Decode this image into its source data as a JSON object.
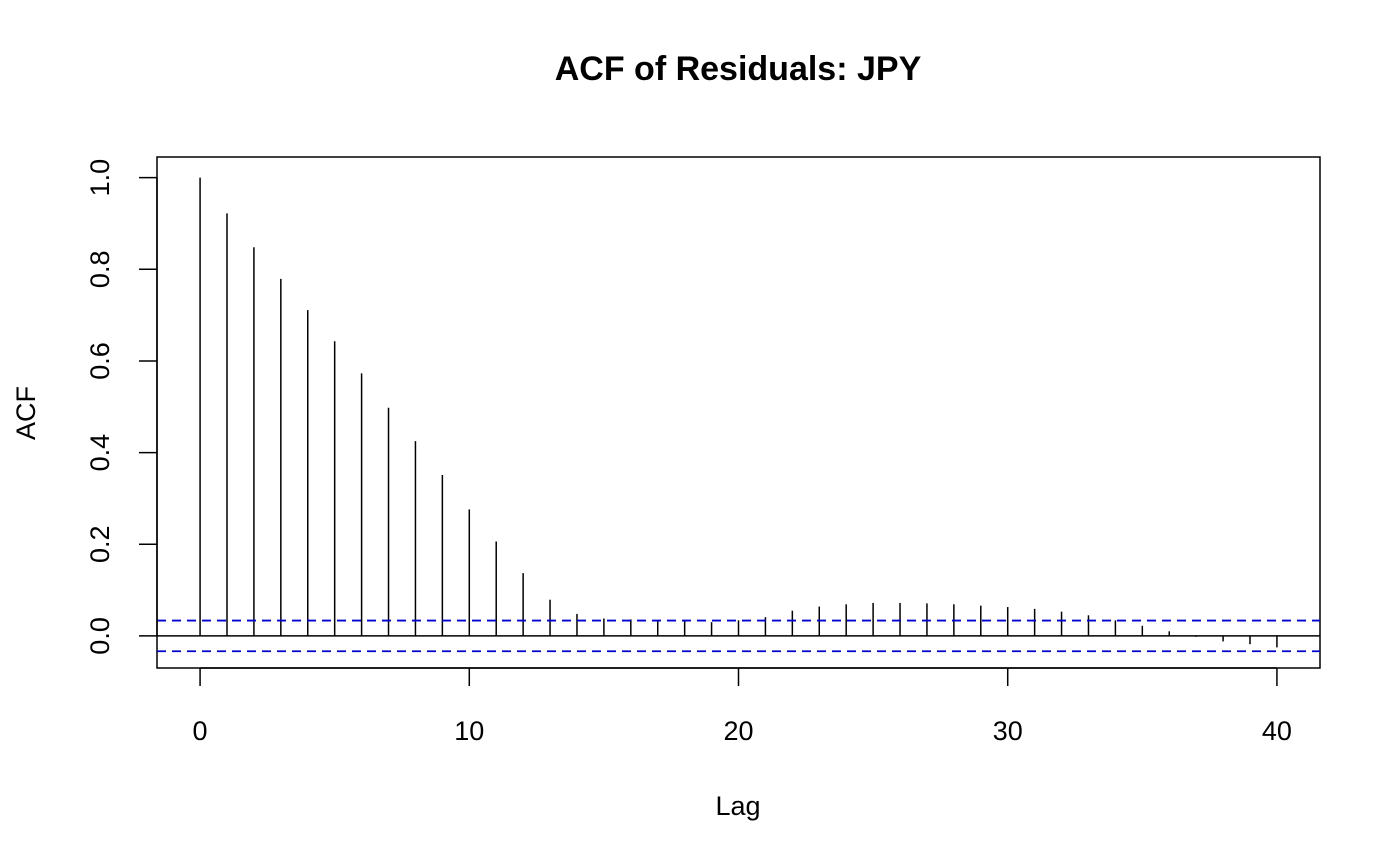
{
  "chart_data": {
    "type": "bar",
    "title": "ACF of Residuals: JPY",
    "xlabel": "Lag",
    "ylabel": "ACF",
    "xlim": [
      -1.6,
      41.6
    ],
    "ylim": [
      -0.07,
      1.045
    ],
    "x_ticks": [
      0,
      10,
      20,
      30,
      40
    ],
    "x_tick_labels": [
      "0",
      "10",
      "20",
      "30",
      "40"
    ],
    "y_ticks": [
      0.0,
      0.2,
      0.4,
      0.6,
      0.8,
      1.0
    ],
    "y_tick_labels": [
      "0.0",
      "0.2",
      "0.4",
      "0.6",
      "0.8",
      "1.0"
    ],
    "grid": false,
    "lags": [
      0,
      1,
      2,
      3,
      4,
      5,
      6,
      7,
      8,
      9,
      10,
      11,
      12,
      13,
      14,
      15,
      16,
      17,
      18,
      19,
      20,
      21,
      22,
      23,
      24,
      25,
      26,
      27,
      28,
      29,
      30,
      31,
      32,
      33,
      34,
      35,
      36,
      37,
      38,
      39,
      40
    ],
    "values": [
      1.0,
      0.922,
      0.848,
      0.779,
      0.711,
      0.643,
      0.573,
      0.498,
      0.425,
      0.351,
      0.276,
      0.206,
      0.137,
      0.079,
      0.048,
      0.038,
      0.036,
      0.033,
      0.032,
      0.03,
      0.034,
      0.041,
      0.055,
      0.064,
      0.069,
      0.072,
      0.072,
      0.071,
      0.069,
      0.066,
      0.063,
      0.059,
      0.053,
      0.045,
      0.034,
      0.022,
      0.01,
      -0.002,
      -0.012,
      -0.018,
      -0.025
    ],
    "confidence_bound": 0.0335,
    "colors": {
      "bars": "#000000",
      "confidence": "#0000cc",
      "frame": "#000000"
    }
  }
}
